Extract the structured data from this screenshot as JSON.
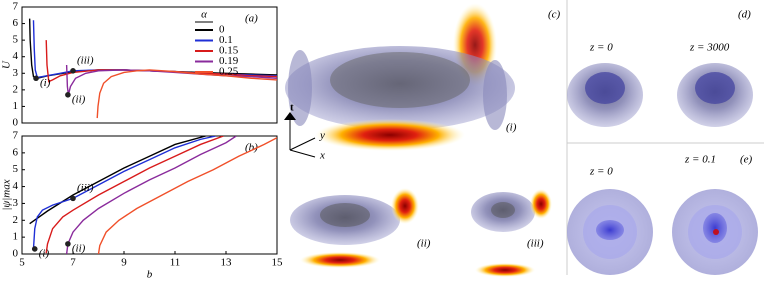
{
  "chart_data": [
    {
      "type": "line",
      "ylabel": "U",
      "panel_label": "(a)",
      "xlim": [
        5,
        15
      ],
      "ylim": [
        0,
        7
      ],
      "yticks": [
        0,
        1,
        2,
        3,
        4,
        5,
        6,
        7
      ],
      "legend_title": "α",
      "legend": "upper right",
      "series": [
        {
          "name": "0",
          "color": "#000000",
          "x": [
            5.3,
            5.32,
            5.38,
            5.45,
            5.6,
            6,
            7,
            8,
            9,
            10,
            11,
            12,
            13,
            14,
            15
          ],
          "values": [
            6.3,
            5,
            3.5,
            2.8,
            2.7,
            2.85,
            3.1,
            3.2,
            3.2,
            3.15,
            3.1,
            3.05,
            3.0,
            2.95,
            2.9
          ]
        },
        {
          "name": "0.1",
          "color": "#1f2fd6",
          "x": [
            5.45,
            5.48,
            5.52,
            5.6,
            5.8,
            6.5,
            7,
            8,
            9,
            10,
            11,
            12,
            13,
            14,
            15
          ],
          "values": [
            6.2,
            4.5,
            3.2,
            2.75,
            2.8,
            3.0,
            3.15,
            3.2,
            3.2,
            3.15,
            3.1,
            3.0,
            2.95,
            2.9,
            2.85
          ]
        },
        {
          "name": "0.15",
          "color": "#d81b1b",
          "x": [
            5.95,
            5.98,
            6.05,
            6.2,
            6.5,
            7,
            8,
            9,
            10,
            11,
            12,
            13,
            14,
            15
          ],
          "values": [
            5,
            3.5,
            2.5,
            2.6,
            2.85,
            3.05,
            3.2,
            3.2,
            3.15,
            3.1,
            3.0,
            2.95,
            2.85,
            2.8
          ]
        },
        {
          "name": "0.19",
          "color": "#8a2b9c",
          "x": [
            6.75,
            6.78,
            6.82,
            6.9,
            7.1,
            7.5,
            8,
            9,
            10,
            11,
            12,
            13,
            14,
            15
          ],
          "values": [
            3.5,
            2.2,
            1.7,
            2.2,
            2.7,
            3.0,
            3.15,
            3.2,
            3.15,
            3.05,
            2.95,
            2.85,
            2.8,
            2.7
          ]
        },
        {
          "name": "0.25",
          "color": "#f0502a",
          "x": [
            7.95,
            7.98,
            8.05,
            8.2,
            8.5,
            9,
            9.5,
            10,
            11,
            12,
            13,
            14,
            15
          ],
          "values": [
            0.3,
            1,
            1.8,
            2.4,
            2.8,
            3.05,
            3.15,
            3.2,
            3.1,
            2.95,
            2.85,
            2.7,
            2.6
          ]
        }
      ],
      "points": [
        {
          "label": "(i)",
          "x": 5.55,
          "y": 2.7
        },
        {
          "label": "(ii)",
          "x": 6.8,
          "y": 1.7
        },
        {
          "label": "(iii)",
          "x": 7,
          "y": 3.15
        }
      ]
    },
    {
      "type": "line",
      "xlabel": "b",
      "ylabel": "|ψ|max",
      "panel_label": "(b)",
      "xlim": [
        5,
        15
      ],
      "ylim": [
        0,
        7
      ],
      "xticks": [
        5,
        7,
        9,
        11,
        13,
        15
      ],
      "yticks": [
        0,
        1,
        2,
        3,
        4,
        5,
        6,
        7
      ],
      "series": [
        {
          "name": "0",
          "color": "#000000",
          "x": [
            5.3,
            6,
            7,
            8,
            9,
            10,
            11,
            12.2
          ],
          "values": [
            1.8,
            2.55,
            3.5,
            4.3,
            5.1,
            5.8,
            6.5,
            7
          ]
        },
        {
          "name": "0.1",
          "color": "#1f2fd6",
          "x": [
            5.45,
            5.5,
            5.6,
            5.8,
            6.2,
            7,
            8,
            9,
            10,
            11,
            12,
            12.6
          ],
          "values": [
            0.3,
            1.5,
            2.2,
            2.6,
            2.9,
            3.3,
            4.1,
            4.9,
            5.6,
            6.3,
            6.8,
            7
          ]
        },
        {
          "name": "0.15",
          "color": "#d81b1b",
          "x": [
            5.95,
            6.0,
            6.2,
            6.6,
            7,
            8,
            9,
            10,
            11,
            12,
            12.9
          ],
          "values": [
            0.05,
            0.6,
            1.5,
            2.2,
            2.6,
            3.5,
            4.3,
            5.1,
            5.8,
            6.5,
            7
          ]
        },
        {
          "name": "0.19",
          "color": "#8a2b9c",
          "x": [
            6.75,
            6.8,
            7,
            7.4,
            8,
            9,
            10,
            11,
            12,
            13,
            13.4
          ],
          "values": [
            0,
            0.6,
            1.3,
            2.0,
            2.7,
            3.6,
            4.4,
            5.1,
            5.9,
            6.6,
            7
          ]
        },
        {
          "name": "0.25",
          "color": "#f0502a",
          "x": [
            8,
            8.05,
            8.3,
            8.8,
            9.5,
            10.5,
            11.5,
            12.5,
            13.5,
            14.5,
            15
          ],
          "values": [
            0,
            0.5,
            1.3,
            2.0,
            2.7,
            3.5,
            4.3,
            5.0,
            5.8,
            6.5,
            6.9
          ]
        }
      ],
      "points": [
        {
          "label": "(i)",
          "x": 5.5,
          "y": 0.3
        },
        {
          "label": "(ii)",
          "x": 6.8,
          "y": 0.6
        },
        {
          "label": "(iii)",
          "x": 7,
          "y": 3.3
        }
      ]
    }
  ],
  "figure": {
    "panel_c": {
      "label": "(c)",
      "axes": [
        "t",
        "y",
        "x"
      ],
      "sublabels": [
        "(i)",
        "(ii)",
        "(iii)"
      ]
    },
    "panel_d": {
      "label": "(d)",
      "captions": [
        "z = 0",
        "z = 3000"
      ]
    },
    "panel_e": {
      "label": "(e)",
      "captions": [
        "z = 0",
        "z = 0.1"
      ]
    }
  }
}
